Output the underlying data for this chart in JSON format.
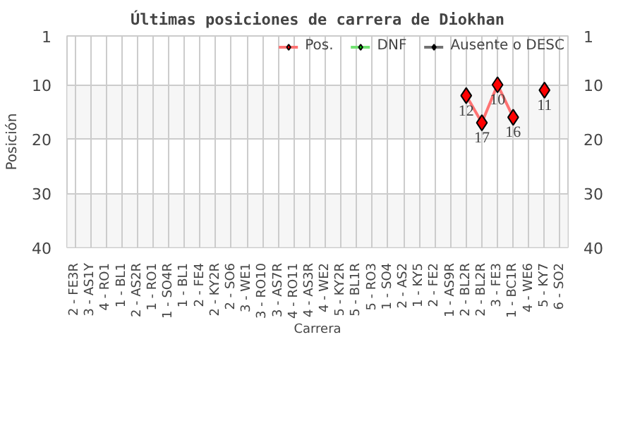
{
  "chart_data": {
    "type": "line",
    "title": "Últimas posiciones de carrera de Diokhan",
    "xlabel": "Carrera",
    "ylabel": "Posición",
    "categories": [
      "2 - FE3R",
      "3 - AS1Y",
      "4 - RO1",
      "1 - BL1",
      "2 - AS2R",
      "1 - RO1",
      "1 - SO4R",
      "1 - BL1",
      "2 - FE4",
      "2 - KY2R",
      "2 - SO6",
      "3 - WE1",
      "3 - RO10",
      "3 - AS7R",
      "4 - RO11",
      "4 - AS3R",
      "4 - WE2",
      "5 - KY2R",
      "5 - BL1R",
      "5 - RO3",
      "1 - SO4",
      "2 - AS2",
      "1 - KY5",
      "2 - FE2",
      "1 - AS9R",
      "2 - BL2R",
      "2 - BL2R",
      "3 - FE3",
      "1 - BC1R",
      "4 - WE6",
      "5 - KY7",
      "6 - SO2"
    ],
    "series": [
      {
        "name": "Pos.",
        "color": "#ff0000",
        "values": [
          null,
          null,
          null,
          null,
          null,
          null,
          null,
          null,
          null,
          null,
          null,
          null,
          null,
          null,
          null,
          null,
          null,
          null,
          null,
          null,
          null,
          null,
          null,
          null,
          null,
          12,
          17,
          10,
          16,
          null,
          11,
          null
        ]
      },
      {
        "name": "DNF",
        "color": "#00cc00",
        "values": [
          null,
          null,
          null,
          null,
          null,
          null,
          null,
          null,
          null,
          null,
          null,
          null,
          null,
          null,
          null,
          null,
          null,
          null,
          null,
          null,
          null,
          null,
          null,
          null,
          null,
          null,
          null,
          null,
          null,
          null,
          null,
          null
        ]
      },
      {
        "name": "Ausente o DESC",
        "color": "#000000",
        "values": [
          null,
          null,
          null,
          null,
          null,
          null,
          null,
          null,
          null,
          null,
          null,
          null,
          null,
          null,
          null,
          null,
          null,
          null,
          null,
          null,
          null,
          null,
          null,
          null,
          null,
          null,
          null,
          null,
          null,
          null,
          null,
          null
        ]
      }
    ],
    "ylim": [
      40,
      1
    ],
    "yticks": [
      1,
      10,
      20,
      30,
      40
    ],
    "y2lim": [
      40,
      1
    ],
    "y2ticks": [
      1,
      10,
      20,
      30,
      40
    ],
    "bands": [
      {
        "axis": "y",
        "from": 10,
        "to": 20,
        "color": "#f2f2f2"
      },
      {
        "axis": "y",
        "from": 30,
        "to": 40,
        "color": "#f2f2f2"
      }
    ],
    "marker": "diamond",
    "grid": true,
    "legend": "top right",
    "data_labels": true
  }
}
